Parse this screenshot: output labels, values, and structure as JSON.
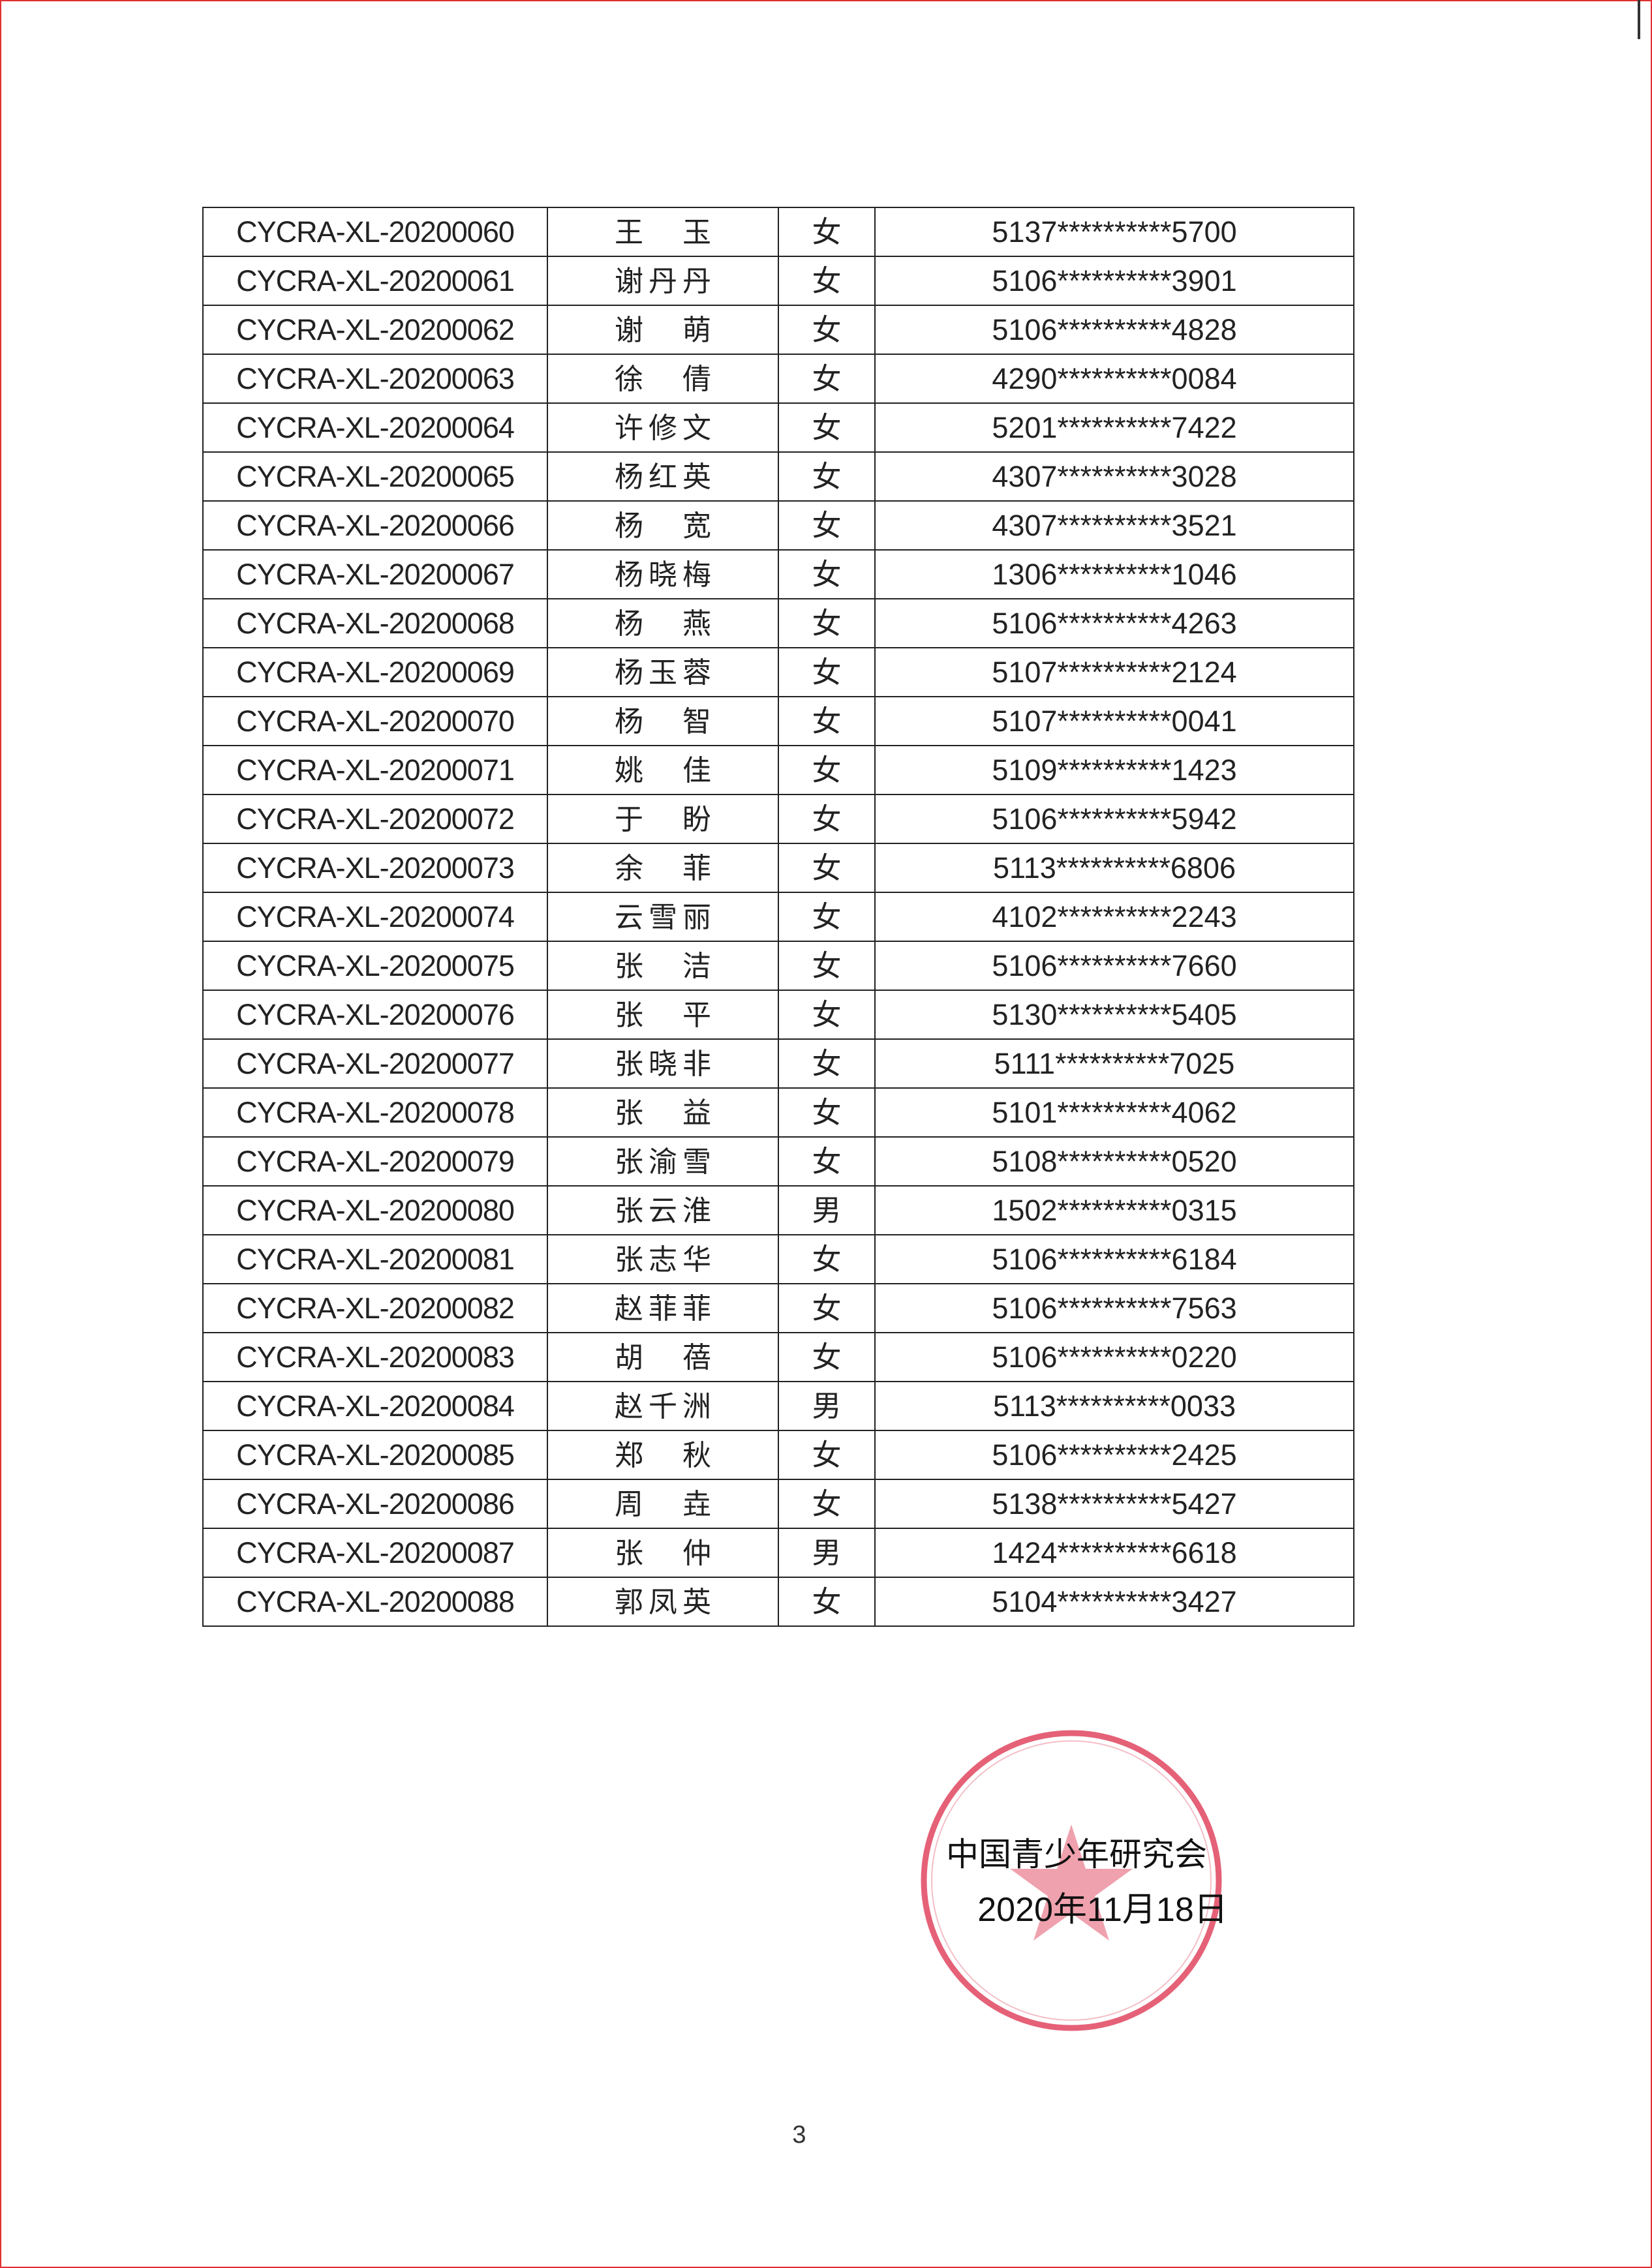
{
  "table": {
    "rows": [
      {
        "code": "CYCRA-XL-20200060",
        "name": "王玉",
        "sex": "女",
        "id": "5137**********5700"
      },
      {
        "code": "CYCRA-XL-20200061",
        "name": "谢丹丹",
        "sex": "女",
        "id": "5106**********3901"
      },
      {
        "code": "CYCRA-XL-20200062",
        "name": "谢萌",
        "sex": "女",
        "id": "5106**********4828"
      },
      {
        "code": "CYCRA-XL-20200063",
        "name": "徐倩",
        "sex": "女",
        "id": "4290**********0084"
      },
      {
        "code": "CYCRA-XL-20200064",
        "name": "许修文",
        "sex": "女",
        "id": "5201**********7422"
      },
      {
        "code": "CYCRA-XL-20200065",
        "name": "杨红英",
        "sex": "女",
        "id": "4307**********3028"
      },
      {
        "code": "CYCRA-XL-20200066",
        "name": "杨宽",
        "sex": "女",
        "id": "4307**********3521"
      },
      {
        "code": "CYCRA-XL-20200067",
        "name": "杨晓梅",
        "sex": "女",
        "id": "1306**********1046"
      },
      {
        "code": "CYCRA-XL-20200068",
        "name": "杨燕",
        "sex": "女",
        "id": "5106**********4263"
      },
      {
        "code": "CYCRA-XL-20200069",
        "name": "杨玉蓉",
        "sex": "女",
        "id": "5107**********2124"
      },
      {
        "code": "CYCRA-XL-20200070",
        "name": "杨智",
        "sex": "女",
        "id": "5107**********0041"
      },
      {
        "code": "CYCRA-XL-20200071",
        "name": "姚佳",
        "sex": "女",
        "id": "5109**********1423"
      },
      {
        "code": "CYCRA-XL-20200072",
        "name": "于盼",
        "sex": "女",
        "id": "5106**********5942"
      },
      {
        "code": "CYCRA-XL-20200073",
        "name": "余菲",
        "sex": "女",
        "id": "5113**********6806"
      },
      {
        "code": "CYCRA-XL-20200074",
        "name": "云雪丽",
        "sex": "女",
        "id": "4102**********2243"
      },
      {
        "code": "CYCRA-XL-20200075",
        "name": "张洁",
        "sex": "女",
        "id": "5106**********7660"
      },
      {
        "code": "CYCRA-XL-20200076",
        "name": "张平",
        "sex": "女",
        "id": "5130**********5405"
      },
      {
        "code": "CYCRA-XL-20200077",
        "name": "张晓非",
        "sex": "女",
        "id": "5111**********7025"
      },
      {
        "code": "CYCRA-XL-20200078",
        "name": "张益",
        "sex": "女",
        "id": "5101**********4062"
      },
      {
        "code": "CYCRA-XL-20200079",
        "name": "张渝雪",
        "sex": "女",
        "id": "5108**********0520"
      },
      {
        "code": "CYCRA-XL-20200080",
        "name": "张云淮",
        "sex": "男",
        "id": "1502**********0315"
      },
      {
        "code": "CYCRA-XL-20200081",
        "name": "张志华",
        "sex": "女",
        "id": "5106**********6184"
      },
      {
        "code": "CYCRA-XL-20200082",
        "name": "赵菲菲",
        "sex": "女",
        "id": "5106**********7563"
      },
      {
        "code": "CYCRA-XL-20200083",
        "name": "胡蓓",
        "sex": "女",
        "id": "5106**********0220"
      },
      {
        "code": "CYCRA-XL-20200084",
        "name": "赵千洲",
        "sex": "男",
        "id": "5113**********0033"
      },
      {
        "code": "CYCRA-XL-20200085",
        "name": "郑秋",
        "sex": "女",
        "id": "5106**********2425"
      },
      {
        "code": "CYCRA-XL-20200086",
        "name": "周垚",
        "sex": "女",
        "id": "5138**********5427"
      },
      {
        "code": "CYCRA-XL-20200087",
        "name": "张仲",
        "sex": "男",
        "id": "1424**********6618"
      },
      {
        "code": "CYCRA-XL-20200088",
        "name": "郭凤英",
        "sex": "女",
        "id": "5104**********3427"
      }
    ]
  },
  "signature": {
    "organization": "中国青少年研究会",
    "date": "2020年11月18日"
  },
  "stamp": {
    "text": "中国青少年研究会",
    "color": "#e0455f"
  },
  "page_number": "3"
}
